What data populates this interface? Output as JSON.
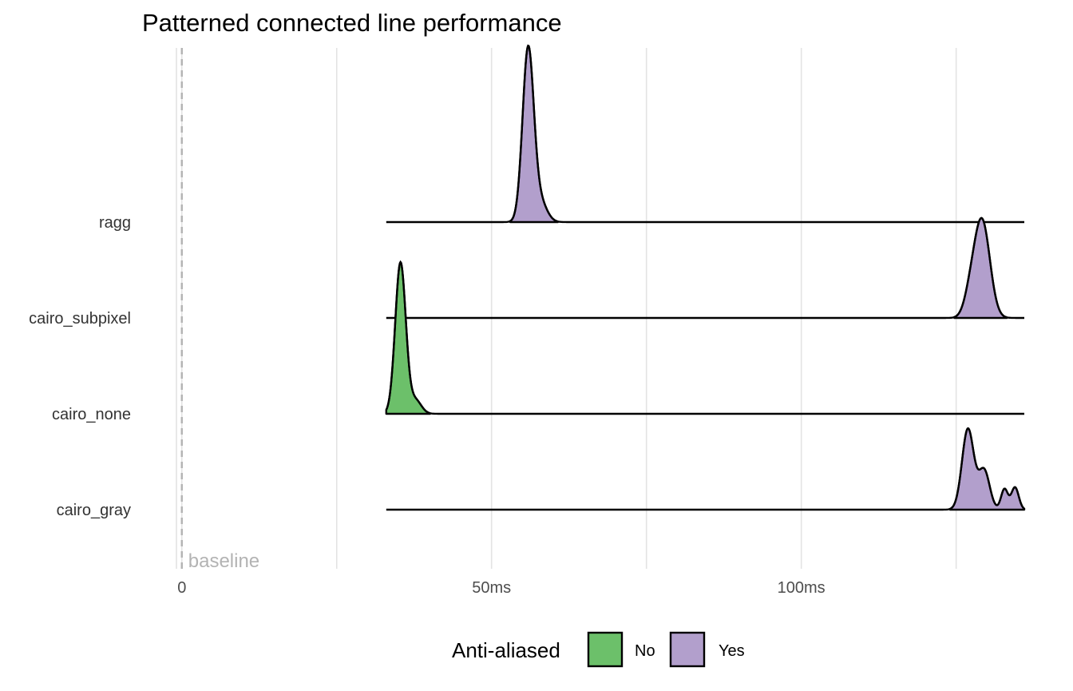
{
  "chart_data": {
    "type": "ridgeline",
    "title": "Patterned connected line performance",
    "xlabel": "",
    "ylabel": "",
    "xlim": [
      -1,
      136
    ],
    "x_ticks": [
      {
        "value": 0,
        "label": "0"
      },
      {
        "value": 50,
        "label": "50ms"
      },
      {
        "value": 100,
        "label": "100ms"
      }
    ],
    "grid": true,
    "legend": {
      "title": "Anti-aliased",
      "position": "bottom",
      "entries": [
        {
          "label": "No",
          "color": "#6cc06a"
        },
        {
          "label": "Yes",
          "color": "#b29fcc"
        }
      ]
    },
    "baseline": {
      "value": 0,
      "label": "baseline",
      "color": "#b3b3b3"
    },
    "density_range": [
      33,
      136
    ],
    "categories": [
      "ragg",
      "cairo_subpixel",
      "cairo_none",
      "cairo_gray"
    ],
    "series": [
      {
        "name": "ragg",
        "anti_aliased": "Yes",
        "peaks": [
          {
            "x": 55.9,
            "height": 1.0,
            "width": 0.9
          },
          {
            "x": 57.8,
            "height": 0.12,
            "width": 1.1
          }
        ]
      },
      {
        "name": "cairo_subpixel",
        "anti_aliased": "Yes",
        "peaks": [
          {
            "x": 129.2,
            "height": 0.56,
            "width": 1.25
          },
          {
            "x": 127.3,
            "height": 0.12,
            "width": 1.0
          }
        ]
      },
      {
        "name": "cairo_none",
        "anti_aliased": "No",
        "peaks": [
          {
            "x": 35.3,
            "height": 0.88,
            "width": 0.85
          },
          {
            "x": 37.7,
            "height": 0.08,
            "width": 0.95
          }
        ]
      },
      {
        "name": "cairo_gray",
        "anti_aliased": "Yes",
        "peaks": [
          {
            "x": 126.9,
            "height": 0.47,
            "width": 0.95
          },
          {
            "x": 129.5,
            "height": 0.23,
            "width": 0.9
          },
          {
            "x": 132.8,
            "height": 0.12,
            "width": 0.55
          },
          {
            "x": 134.5,
            "height": 0.13,
            "width": 0.6
          }
        ]
      }
    ]
  }
}
